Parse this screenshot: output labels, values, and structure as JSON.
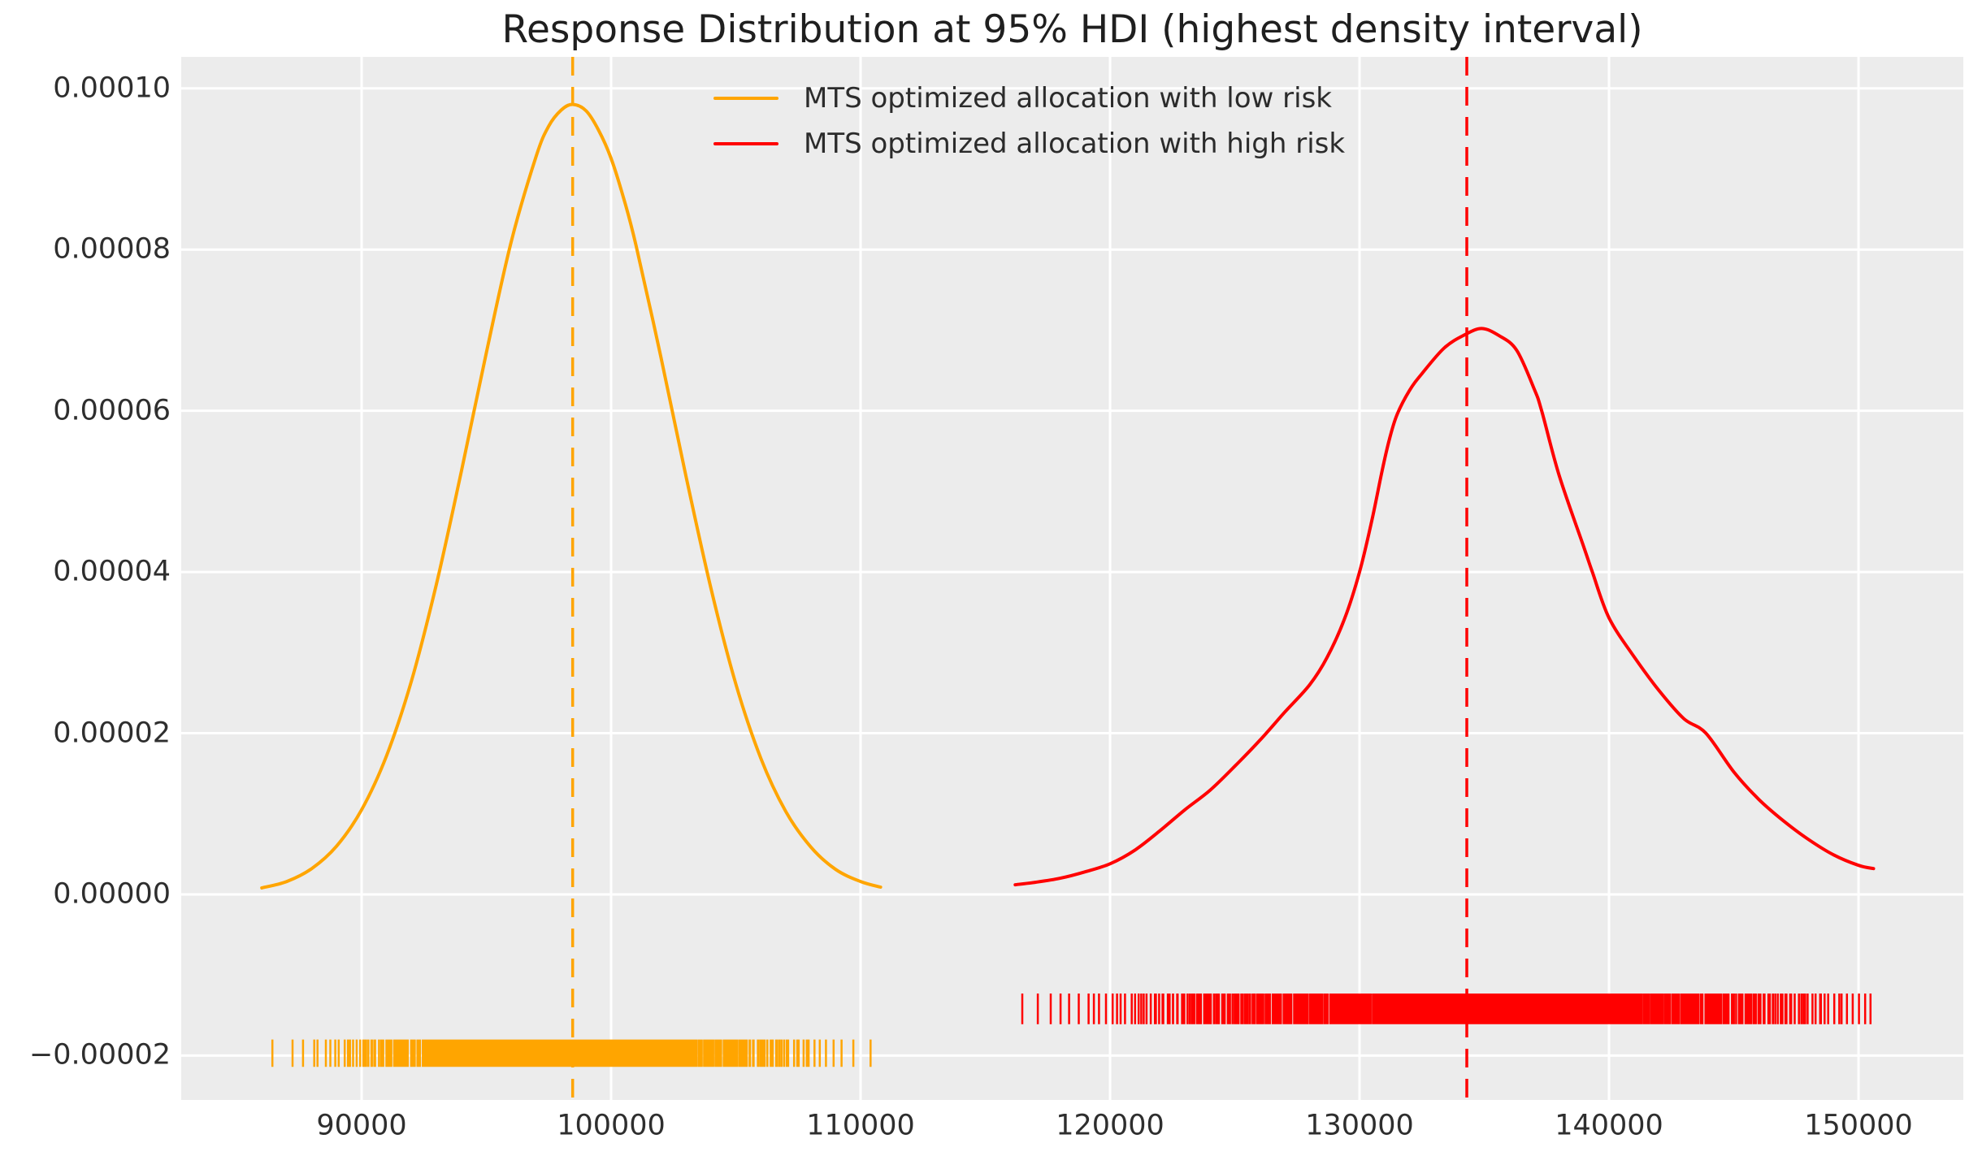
{
  "title": "Response Distribution at 95% HDI (highest density interval)",
  "colors": {
    "figure_background": "#FFFFFF",
    "plot_background": "#ECECEC",
    "grid": "#FFFFFF",
    "text": "#2E2E2E",
    "low_risk": "#FFA500",
    "high_risk": "#FF0000"
  },
  "legend": {
    "items": [
      {
        "label": "MTS optimized allocation with low risk",
        "color": "#FFA500"
      },
      {
        "label": "MTS optimized allocation with high risk",
        "color": "#FF0000"
      }
    ]
  },
  "chart_data": {
    "type": "line",
    "subtype": "kde-density-with-rug",
    "title": "Response Distribution at 95% HDI (highest density interval)",
    "xlabel": "",
    "ylabel": "",
    "grid": true,
    "legend_position": "upper center",
    "xlim": [
      82770,
      154200
    ],
    "ylim": [
      -2.55e-05,
      0.0001039
    ],
    "x_ticks": {
      "values": [
        90000,
        100000,
        110000,
        120000,
        130000,
        140000,
        150000
      ],
      "labels": [
        "90000",
        "100000",
        "110000",
        "120000",
        "130000",
        "140000",
        "150000"
      ]
    },
    "y_ticks": {
      "values": [
        0.0001,
        8e-05,
        6e-05,
        4e-05,
        2e-05,
        0.0,
        -2e-05
      ],
      "labels": [
        "0.00010",
        "0.00008",
        "0.00006",
        "0.00004",
        "0.00002",
        "0.00000",
        "−0.00002"
      ]
    },
    "series": [
      {
        "name": "MTS optimized allocation with low risk",
        "color": "#FFA500",
        "line_style": "solid",
        "peak": {
          "x": 98460,
          "y": 9.8e-05
        },
        "mean_line": {
          "x": 98460,
          "style": "dashed"
        },
        "points": [
          [
            86000,
            8e-07
          ],
          [
            87000,
            1.6e-06
          ],
          [
            88000,
            3.2e-06
          ],
          [
            89000,
            6e-06
          ],
          [
            90000,
            1.05e-05
          ],
          [
            91000,
            1.72e-05
          ],
          [
            92000,
            2.65e-05
          ],
          [
            93000,
            3.85e-05
          ],
          [
            94000,
            5.25e-05
          ],
          [
            95000,
            6.72e-05
          ],
          [
            96000,
            8.1e-05
          ],
          [
            97000,
            9.16e-05
          ],
          [
            97500,
            9.53e-05
          ],
          [
            98000,
            9.73e-05
          ],
          [
            98460,
            9.8e-05
          ],
          [
            99000,
            9.72e-05
          ],
          [
            99500,
            9.48e-05
          ],
          [
            100000,
            9.13e-05
          ],
          [
            100500,
            8.64e-05
          ],
          [
            101000,
            8.05e-05
          ],
          [
            102000,
            6.66e-05
          ],
          [
            103000,
            5.19e-05
          ],
          [
            104000,
            3.8e-05
          ],
          [
            105000,
            2.61e-05
          ],
          [
            106000,
            1.69e-05
          ],
          [
            107000,
            1.03e-05
          ],
          [
            108000,
            5.9e-06
          ],
          [
            109000,
            3.1e-06
          ],
          [
            110000,
            1.6e-06
          ],
          [
            110800,
            9e-07
          ]
        ]
      },
      {
        "name": "MTS optimized allocation with high risk",
        "color": "#FF0000",
        "line_style": "solid",
        "peak": {
          "x": 134900,
          "y": 7.02e-05
        },
        "mean_line": {
          "x": 134300,
          "style": "dashed"
        },
        "points": [
          [
            116200,
            1.2e-06
          ],
          [
            117000,
            1.5e-06
          ],
          [
            118000,
            2e-06
          ],
          [
            119000,
            2.8e-06
          ],
          [
            120000,
            3.8e-06
          ],
          [
            121000,
            5.5e-06
          ],
          [
            122000,
            7.9e-06
          ],
          [
            123000,
            1.05e-05
          ],
          [
            124000,
            1.29e-05
          ],
          [
            125000,
            1.59e-05
          ],
          [
            126000,
            1.91e-05
          ],
          [
            127000,
            2.26e-05
          ],
          [
            128000,
            2.6e-05
          ],
          [
            128700,
            2.94e-05
          ],
          [
            129400,
            3.42e-05
          ],
          [
            130000,
            4e-05
          ],
          [
            130500,
            4.65e-05
          ],
          [
            130900,
            5.25e-05
          ],
          [
            131200,
            5.65e-05
          ],
          [
            131500,
            5.95e-05
          ],
          [
            132000,
            6.25e-05
          ],
          [
            132500,
            6.46e-05
          ],
          [
            133400,
            6.78e-05
          ],
          [
            134200,
            6.94e-05
          ],
          [
            134900,
            7.02e-05
          ],
          [
            135600,
            6.93e-05
          ],
          [
            136300,
            6.75e-05
          ],
          [
            137000,
            6.27e-05
          ],
          [
            137300,
            6e-05
          ],
          [
            138000,
            5.2e-05
          ],
          [
            139000,
            4.3e-05
          ],
          [
            139330,
            4e-05
          ],
          [
            140000,
            3.43e-05
          ],
          [
            141000,
            2.95e-05
          ],
          [
            142000,
            2.53e-05
          ],
          [
            143000,
            2.18e-05
          ],
          [
            143880,
            2e-05
          ],
          [
            145000,
            1.52e-05
          ],
          [
            146000,
            1.18e-05
          ],
          [
            147000,
            9.1e-06
          ],
          [
            148000,
            6.8e-06
          ],
          [
            149000,
            4.9e-06
          ],
          [
            150000,
            3.6e-06
          ],
          [
            150600,
            3.2e-06
          ]
        ]
      }
    ],
    "rugs": [
      {
        "name": "MTS optimized allocation with low risk",
        "color": "#FFA500",
        "y_center": -1.97e-05,
        "half_height": 1.7e-06,
        "count": 900,
        "seed": 7,
        "x_min": 86000,
        "x_max": 110800
      },
      {
        "name": "MTS optimized allocation with high risk",
        "color": "#FF0000",
        "y_center": -1.42e-05,
        "half_height": 1.9e-06,
        "count": 1100,
        "seed": 13,
        "x_min": 116200,
        "x_max": 150700
      }
    ]
  }
}
